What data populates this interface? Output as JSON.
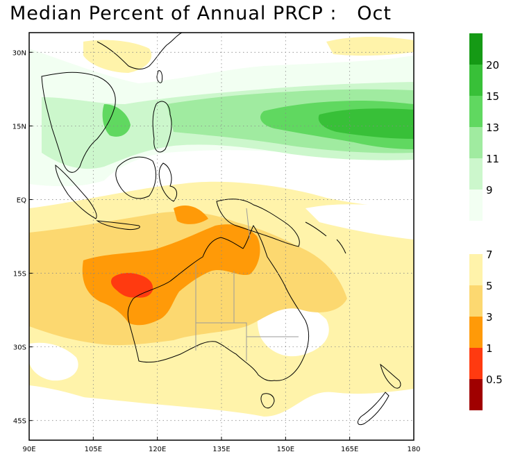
{
  "title": "Median Percent of Annual PRCP :   Oct",
  "map": {
    "lon_range": [
      90,
      180
    ],
    "lat_range": [
      -49,
      34
    ],
    "x_ticks": [
      {
        "lon": 90,
        "label": "90E"
      },
      {
        "lon": 105,
        "label": "105E"
      },
      {
        "lon": 120,
        "label": "120E"
      },
      {
        "lon": 135,
        "label": "135E"
      },
      {
        "lon": 150,
        "label": "150E"
      },
      {
        "lon": 165,
        "label": "165E"
      },
      {
        "lon": 180,
        "label": "180"
      }
    ],
    "y_ticks": [
      {
        "lat": 30,
        "label": "30N"
      },
      {
        "lat": 15,
        "label": "15N"
      },
      {
        "lat": 0,
        "label": "EQ"
      },
      {
        "lat": -15,
        "label": "15S"
      },
      {
        "lat": -30,
        "label": "30S"
      },
      {
        "lat": -45,
        "label": "45S"
      }
    ],
    "grid": "dotted"
  },
  "colorbar": {
    "upper": [
      {
        "color": "#f2fff2",
        "label": "9"
      },
      {
        "color": "#ccf7cc",
        "label": "11"
      },
      {
        "color": "#a0eba0",
        "label": "13"
      },
      {
        "color": "#60d860",
        "label": "15"
      },
      {
        "color": "#38c038",
        "label": "20"
      },
      {
        "color": "#159a15",
        "label": ""
      }
    ],
    "lower": [
      {
        "color": "#a00000",
        "label": "0.5"
      },
      {
        "color": "#ff3a10",
        "label": "1"
      },
      {
        "color": "#ff9a08",
        "label": "3"
      },
      {
        "color": "#fcd870",
        "label": "5"
      },
      {
        "color": "#fff3aa",
        "label": "7"
      }
    ]
  }
}
